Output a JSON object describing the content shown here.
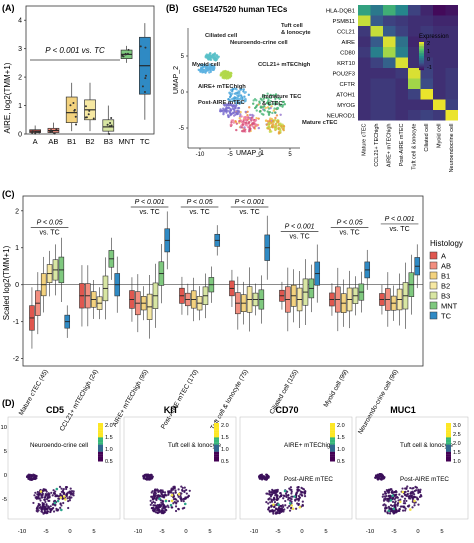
{
  "panels": {
    "A": {
      "letter": "(A)",
      "ylabel": "AIRE, log2(TMM+1)",
      "annotation": "P < 0.001 vs. TC",
      "yticks": [
        "0",
        "1",
        "2",
        "3",
        "4"
      ],
      "chart_data": {
        "type": "box",
        "ylabel": "AIRE, log2(TMM+1)",
        "ylim": [
          0,
          4.5
        ],
        "categories": [
          "A",
          "AB",
          "B1",
          "B2",
          "B3",
          "MNT",
          "TC"
        ],
        "colors": [
          "#e0574f",
          "#f28e7f",
          "#f3d27e",
          "#f6e8a2",
          "#d8e6a3",
          "#7fc97f",
          "#2f8ac4"
        ],
        "boxes": [
          {
            "min": 0.0,
            "q1": 0.05,
            "median": 0.1,
            "q3": 0.15,
            "max": 0.3
          },
          {
            "min": 0.0,
            "q1": 0.05,
            "median": 0.12,
            "q3": 0.2,
            "max": 0.4
          },
          {
            "min": 0.1,
            "q1": 0.4,
            "median": 0.75,
            "q3": 1.3,
            "max": 1.8
          },
          {
            "min": 0.1,
            "q1": 0.5,
            "median": 0.85,
            "q3": 1.2,
            "max": 1.8
          },
          {
            "min": 0.0,
            "q1": 0.1,
            "median": 0.25,
            "q3": 0.5,
            "max": 1.0
          },
          {
            "min": 2.5,
            "q1": 2.65,
            "median": 2.8,
            "q3": 2.95,
            "max": 3.1
          },
          {
            "min": 0.5,
            "q1": 1.4,
            "median": 2.4,
            "q3": 3.4,
            "max": 3.9
          }
        ]
      }
    },
    "B": {
      "letter": "(B)",
      "title": "GSE147520 human TECs",
      "xaxis": "UMAP_1",
      "yaxis": "UMAP_2",
      "xticks": [
        "-10",
        "-5",
        "0",
        "5"
      ],
      "yticks": [
        "5",
        "0",
        "-5"
      ],
      "clusters": [
        {
          "label": "Tuft cell & lonocyte"
        },
        {
          "label": "Ciliated cell"
        },
        {
          "label": "Neuroendo-crine cell"
        },
        {
          "label": "Myoid cell"
        },
        {
          "label": "CCL21+ mTEChigh"
        },
        {
          "label": "AIRE+ mTEChigh"
        },
        {
          "label": "Post-AIRE mTEC"
        },
        {
          "label": "Immature TEC & cTEC"
        },
        {
          "label": "Mature cTEC"
        }
      ],
      "heatmap": {
        "rows": [
          "HLA-DQB1",
          "PSMB11",
          "CCL21",
          "AIRE",
          "CD80",
          "KRT10",
          "POU2F3",
          "CFTR",
          "ATOH1",
          "MYOG",
          "NEUROD1"
        ],
        "cols": [
          "Mature cTEC",
          "CCL21+ TEChigh",
          "AIRE+ mTEChigh",
          "Post-AIRE mTEC",
          "Tuft cell & ionocyte",
          "Ciliated cell",
          "Myoid cell",
          "Neuroendocrine cell"
        ],
        "legend_title": "Expression",
        "legend_ticks": [
          "2",
          "1",
          "0",
          "-1"
        ],
        "values": [
          [
            1.0,
            0.4,
            1.2,
            0.6,
            -0.3,
            -0.6,
            -0.9,
            -0.8
          ],
          [
            2.2,
            0.0,
            -0.3,
            -0.4,
            -0.5,
            -0.5,
            -0.6,
            -0.6
          ],
          [
            -0.4,
            2.2,
            0.0,
            -0.3,
            -0.5,
            -0.4,
            -0.5,
            -0.5
          ],
          [
            -0.5,
            0.0,
            2.3,
            0.3,
            -0.6,
            -0.5,
            -0.5,
            -0.5
          ],
          [
            -0.4,
            0.5,
            2.0,
            0.5,
            -0.5,
            -0.5,
            -0.5,
            -0.5
          ],
          [
            -0.5,
            -0.3,
            0.1,
            2.3,
            -0.5,
            -0.4,
            -0.5,
            -0.5
          ],
          [
            -0.5,
            -0.5,
            -0.5,
            -0.4,
            2.3,
            -0.3,
            -0.5,
            -0.4
          ],
          [
            -0.5,
            -0.4,
            -0.4,
            -0.5,
            2.0,
            -0.2,
            -0.5,
            -0.4
          ],
          [
            -0.5,
            -0.4,
            -0.4,
            -0.5,
            -0.3,
            2.4,
            -0.5,
            -0.4
          ],
          [
            -0.5,
            -0.4,
            -0.4,
            -0.5,
            -0.5,
            -0.5,
            2.4,
            -0.3
          ],
          [
            -0.5,
            -0.4,
            -0.4,
            -0.5,
            -0.4,
            -0.3,
            -0.4,
            2.4
          ]
        ]
      }
    },
    "C": {
      "letter": "(C)",
      "ylabel": "Scaled log2(TMM+1)",
      "yticks": [
        "2",
        "1",
        "0",
        "-1",
        "-2"
      ],
      "legend_title": "Histology",
      "groups": [
        {
          "label": "Mature cTEC (45)",
          "pv": "P < 0.05",
          "vs": "vs. TC"
        },
        {
          "label": "CCL21+ mTEChigh (24)",
          "pv": "",
          "vs": ""
        },
        {
          "label": "AIRE+ mTEChigh (95)",
          "pv": "P < 0.001",
          "vs": "vs. TC"
        },
        {
          "label": "Post-AIRE mTEC (170)",
          "pv": "P < 0.05",
          "vs": "vs. TC"
        },
        {
          "label": "Tuft cell & Ionocyte (75)",
          "pv": "P < 0.001",
          "vs": "vs. TC"
        },
        {
          "label": "Ciliated cell (155)",
          "pv": "P < 0.001",
          "vs": "vs. TC"
        },
        {
          "label": "Myoid cell (99)",
          "pv": "P < 0.05",
          "vs": "vs. TC"
        },
        {
          "label": "Neuroendo-crine cell (96)",
          "pv": "P < 0.001",
          "vs": "vs. TC"
        }
      ],
      "chart_data": {
        "type": "box",
        "ylabel": "Scaled log2(TMM+1)",
        "ylim": [
          -2.2,
          2.4
        ],
        "series": [
          {
            "name": "A",
            "color": "#e0574f"
          },
          {
            "name": "AB",
            "color": "#f28e7f"
          },
          {
            "name": "B1",
            "color": "#f3d27e"
          },
          {
            "name": "B2",
            "color": "#f6e8a2"
          },
          {
            "name": "B3",
            "color": "#d8e6a3"
          },
          {
            "name": "MNT",
            "color": "#7fc97f"
          },
          {
            "name": "TC",
            "color": "#2f8ac4"
          }
        ],
        "medians": [
          [
            -0.9,
            -0.5,
            0.0,
            0.3,
            0.4,
            0.4,
            -1.0
          ],
          [
            -0.3,
            -0.3,
            -0.4,
            -0.5,
            -0.1,
            0.7,
            0.0
          ],
          [
            -0.4,
            -0.5,
            -0.5,
            -0.6,
            -0.3,
            0.3,
            1.2
          ],
          [
            -0.3,
            -0.4,
            -0.4,
            -0.5,
            -0.3,
            0.0,
            1.2
          ],
          [
            -0.1,
            -0.5,
            -0.5,
            -0.4,
            -0.4,
            -0.4,
            1.0
          ],
          [
            -0.3,
            -0.4,
            -0.3,
            -0.4,
            -0.2,
            -0.1,
            0.3
          ],
          [
            -0.4,
            -0.4,
            -0.5,
            -0.4,
            -0.3,
            -0.2,
            0.4
          ],
          [
            -0.4,
            -0.4,
            -0.5,
            -0.4,
            -0.3,
            0.0,
            0.5
          ]
        ]
      }
    },
    "D": {
      "letter": "(D)",
      "plots": [
        {
          "title": "CD5",
          "legend_ticks": [
            "2.0",
            "1.5",
            "1.0",
            "0.5"
          ],
          "labels": [
            "Neuroendo-crine cell"
          ]
        },
        {
          "title": "KIT",
          "legend_ticks": [
            "2.0",
            "1.5",
            "1.0",
            "0.5"
          ],
          "labels": [
            "Tuft cell & lonocyte"
          ]
        },
        {
          "title": "CD70",
          "legend_ticks": [
            "2.0",
            "1.5",
            "1.0",
            "0.5"
          ],
          "labels": [
            "AIRE+ mTEChigh",
            "Post-AIRE mTEC"
          ]
        },
        {
          "title": "MUC1",
          "legend_ticks": [
            "3.0",
            "2.5",
            "2.0",
            "1.5",
            "1.0"
          ],
          "labels": [
            "Tuft cell & lonocyte",
            "Post-AIRE mTEC"
          ]
        }
      ],
      "xticks": [
        "-10",
        "-5",
        "0",
        "5"
      ],
      "yticks": [
        "10",
        "5",
        "0",
        "-5"
      ]
    }
  }
}
